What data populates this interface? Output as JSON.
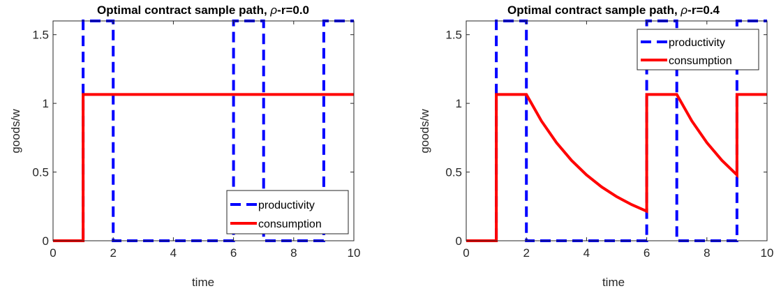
{
  "chart_data": [
    {
      "type": "line",
      "title": "Optimal contract sample path, ρ-r=0.0",
      "title_prefix": "Optimal contract sample path, ",
      "title_rho": "ρ",
      "title_suffix": "-r=0.0",
      "xlabel": "time",
      "ylabel": "goods/w",
      "xlim": [
        0,
        10
      ],
      "ylim": [
        0,
        1.6
      ],
      "xticks": [
        "0",
        "2",
        "4",
        "6",
        "8",
        "10"
      ],
      "yticks": [
        "0",
        "0.5",
        "1",
        "1.5"
      ],
      "grid": false,
      "legend_position": "bottom-right",
      "series": [
        {
          "name": "productivity",
          "color": "#0000ff",
          "style": "dashed",
          "x": [
            0,
            1,
            1,
            2,
            2,
            6,
            6,
            7,
            7,
            9,
            9,
            10
          ],
          "y": [
            0,
            0,
            1.6,
            1.6,
            0,
            0,
            1.6,
            1.6,
            0,
            0,
            1.6,
            1.6
          ]
        },
        {
          "name": "consumption",
          "color": "#ff0000",
          "style": "solid",
          "x": [
            0,
            1,
            1,
            10
          ],
          "y": [
            0,
            0,
            1.065,
            1.065
          ]
        }
      ]
    },
    {
      "type": "line",
      "title": "Optimal contract sample path, ρ-r=0.4",
      "title_prefix": "Optimal contract sample path, ",
      "title_rho": "ρ",
      "title_suffix": "-r=0.4",
      "xlabel": "time",
      "ylabel": "goods/w",
      "xlim": [
        0,
        10
      ],
      "ylim": [
        0,
        1.6
      ],
      "xticks": [
        "0",
        "2",
        "4",
        "6",
        "8",
        "10"
      ],
      "yticks": [
        "0",
        "0.5",
        "1",
        "1.5"
      ],
      "grid": false,
      "legend_position": "top-right",
      "series": [
        {
          "name": "productivity",
          "color": "#0000ff",
          "style": "dashed",
          "x": [
            0,
            1,
            1,
            2,
            2,
            6,
            6,
            7,
            7,
            9,
            9,
            10
          ],
          "y": [
            0,
            0,
            1.6,
            1.6,
            0,
            0,
            1.6,
            1.6,
            0,
            0,
            1.6,
            1.6
          ]
        },
        {
          "name": "consumption",
          "color": "#ff0000",
          "style": "solid",
          "x": [
            0,
            1,
            1,
            2,
            2.5,
            3,
            3.5,
            4,
            4.5,
            5,
            5.5,
            6,
            6,
            7,
            7.5,
            8,
            8.5,
            9,
            9,
            10
          ],
          "y": [
            0,
            0,
            1.065,
            1.065,
            0.872,
            0.714,
            0.585,
            0.479,
            0.392,
            0.321,
            0.263,
            0.215,
            1.065,
            1.065,
            0.872,
            0.714,
            0.585,
            0.479,
            1.065,
            1.065
          ]
        }
      ]
    }
  ]
}
